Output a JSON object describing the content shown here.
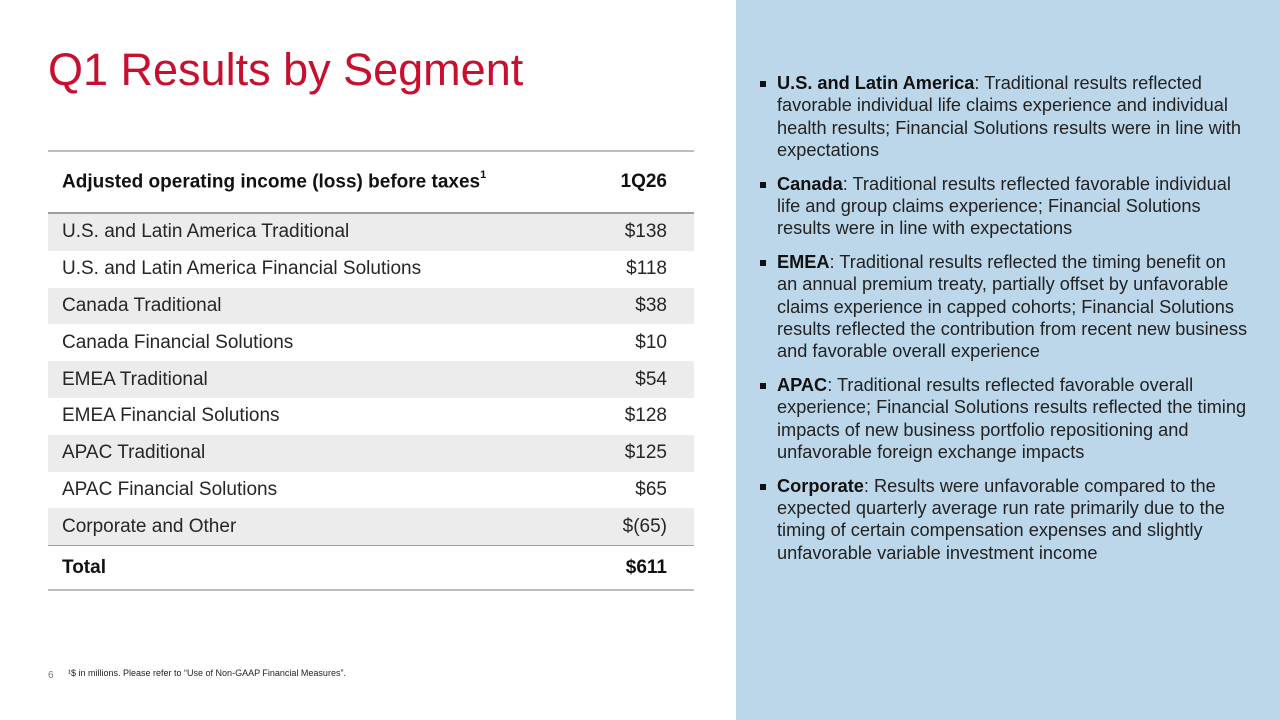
{
  "title": "Q1 Results by Segment",
  "table": {
    "header_label": "Adjusted operating income (loss) before taxes",
    "header_sup": "1",
    "header_col": "1Q26",
    "rows": [
      {
        "label": "U.S. and Latin America Traditional",
        "value": "$138"
      },
      {
        "label": "U.S. and Latin America Financial Solutions",
        "value": "$118"
      },
      {
        "label": "Canada Traditional",
        "value": "$38"
      },
      {
        "label": "Canada Financial Solutions",
        "value": "$10"
      },
      {
        "label": "EMEA Traditional",
        "value": "$54"
      },
      {
        "label": "EMEA Financial Solutions",
        "value": "$128"
      },
      {
        "label": "APAC Traditional",
        "value": "$125"
      },
      {
        "label": "APAC Financial Solutions",
        "value": "$65"
      },
      {
        "label": "Corporate and Other",
        "value": "$(65)"
      }
    ],
    "total_label": "Total",
    "total_value": "$611"
  },
  "footer": {
    "page_number": "6",
    "footnote": "¹$ in millions. Please refer to “Use of Non-GAAP Financial Measures”."
  },
  "bullets": [
    {
      "heading": "U.S. and Latin America",
      "text": ": Traditional results reflected favorable individual life claims experience and individual health results; Financial Solutions results were in line with expectations"
    },
    {
      "heading": "Canada",
      "text": ": Traditional results reflected favorable individual life and group claims experience; Financial Solutions results were in line with expectations"
    },
    {
      "heading": "EMEA",
      "text": ": Traditional results reflected the timing benefit on an annual premium treaty, partially offset by unfavorable claims experience in capped cohorts; Financial Solutions results reflected the contribution from recent new business and favorable overall experience"
    },
    {
      "heading": "APAC",
      "text": ": Traditional results reflected favorable overall experience; Financial Solutions results reflected the timing impacts of new business portfolio repositioning and unfavorable foreign exchange impacts"
    },
    {
      "heading": "Corporate",
      "text": ": Results were unfavorable compared to the expected quarterly average run rate primarily due to the timing of certain compensation expenses and slightly unfavorable variable investment income"
    }
  ],
  "colors": {
    "title": "#c8102e",
    "panel": "#bcd7ea",
    "row_shade": "#ececec"
  }
}
